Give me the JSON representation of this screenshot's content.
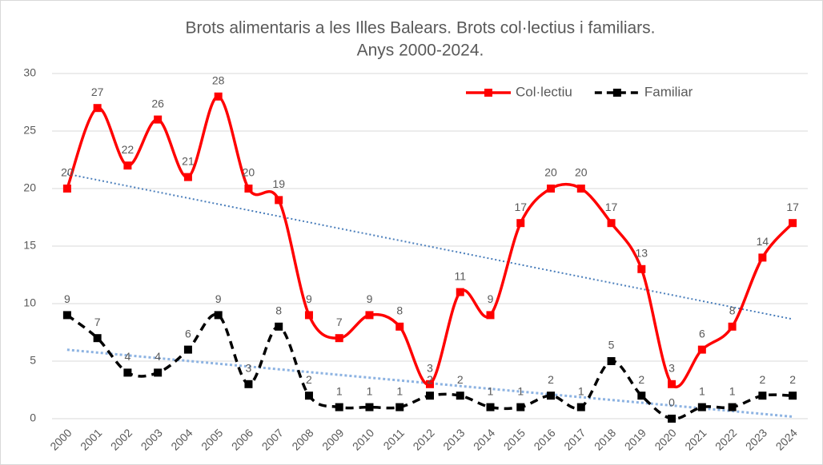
{
  "chart_data": {
    "type": "line",
    "title": [
      "Brots alimentaris a les Illes Balears. Brots col·lectius i familiars.",
      "Anys 2000-2024."
    ],
    "categories": [
      "2000",
      "2001",
      "2002",
      "2003",
      "2004",
      "2005",
      "2006",
      "2007",
      "2008",
      "2009",
      "2010",
      "2011",
      "2012",
      "2013",
      "2014",
      "2015",
      "2016",
      "2017",
      "2018",
      "2019",
      "2020",
      "2021",
      "2022",
      "2023",
      "2024"
    ],
    "series": [
      {
        "name": "Col·lectiu",
        "color": "#ff0000",
        "dash": false,
        "trendline": "#4a7ebb",
        "values": [
          20,
          27,
          22,
          26,
          21,
          28,
          20,
          19,
          9,
          7,
          9,
          8,
          3,
          11,
          9,
          17,
          20,
          20,
          17,
          13,
          3,
          6,
          8,
          14,
          17
        ]
      },
      {
        "name": "Familiar",
        "color": "#000000",
        "dash": true,
        "trendline": "#8db3e2",
        "values": [
          9,
          7,
          4,
          4,
          6,
          9,
          3,
          8,
          2,
          1,
          1,
          1,
          2,
          2,
          1,
          1,
          2,
          1,
          5,
          2,
          0,
          1,
          1,
          2,
          2
        ]
      }
    ],
    "ylim": [
      0,
      30
    ],
    "yticks": [
      0,
      5,
      10,
      15,
      20,
      25,
      30
    ],
    "grid": true,
    "smooth": true,
    "legend": "upper right"
  }
}
